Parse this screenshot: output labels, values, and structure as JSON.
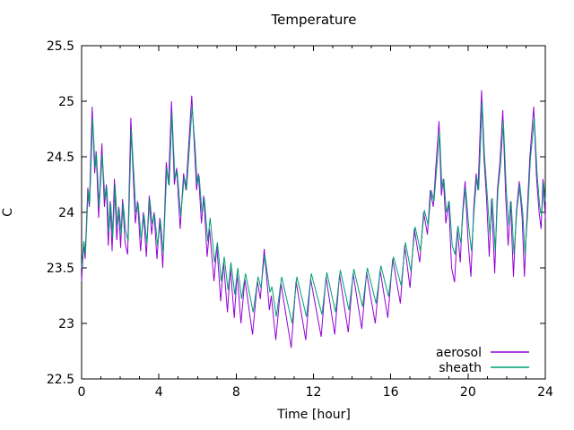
{
  "chart_data": {
    "type": "line",
    "title": "Temperature",
    "xlabel": "Time [hour]",
    "ylabel": "C",
    "xlim": [
      0,
      24
    ],
    "ylim": [
      22.5,
      25.5
    ],
    "grid": false,
    "legend_position": "inside-bottom-right",
    "x_major_ticks": [
      0,
      4,
      8,
      12,
      16,
      20,
      24
    ],
    "x_tick_labels": [
      "0",
      "4",
      "8",
      "12",
      "16",
      "20",
      "24"
    ],
    "x_minor_step": 1,
    "y_major_ticks": [
      22.5,
      23,
      23.5,
      24,
      24.5,
      25,
      25.5
    ],
    "y_tick_labels": [
      "22.5",
      "23",
      "23.5",
      "24",
      "24.5",
      "25",
      "25.5"
    ],
    "series": [
      {
        "name": "aerosol",
        "color": "#9400d3",
        "points": [
          [
            0.0,
            23.38
          ],
          [
            0.1,
            23.72
          ],
          [
            0.18,
            23.58
          ],
          [
            0.32,
            24.22
          ],
          [
            0.4,
            24.05
          ],
          [
            0.55,
            24.95
          ],
          [
            0.68,
            24.35
          ],
          [
            0.75,
            24.55
          ],
          [
            0.88,
            23.95
          ],
          [
            1.05,
            24.62
          ],
          [
            1.18,
            24.05
          ],
          [
            1.28,
            24.25
          ],
          [
            1.38,
            23.7
          ],
          [
            1.48,
            24.1
          ],
          [
            1.58,
            23.65
          ],
          [
            1.7,
            24.3
          ],
          [
            1.82,
            23.75
          ],
          [
            1.92,
            24.05
          ],
          [
            2.02,
            23.68
          ],
          [
            2.12,
            24.12
          ],
          [
            2.25,
            23.72
          ],
          [
            2.38,
            23.62
          ],
          [
            2.55,
            24.85
          ],
          [
            2.68,
            24.3
          ],
          [
            2.78,
            23.9
          ],
          [
            2.9,
            24.1
          ],
          [
            3.05,
            23.65
          ],
          [
            3.2,
            24.0
          ],
          [
            3.35,
            23.6
          ],
          [
            3.5,
            24.15
          ],
          [
            3.62,
            23.8
          ],
          [
            3.75,
            24.0
          ],
          [
            3.9,
            23.58
          ],
          [
            4.05,
            23.95
          ],
          [
            4.2,
            23.5
          ],
          [
            4.38,
            24.45
          ],
          [
            4.5,
            24.25
          ],
          [
            4.65,
            25.0
          ],
          [
            4.8,
            24.25
          ],
          [
            4.92,
            24.4
          ],
          [
            5.1,
            23.85
          ],
          [
            5.28,
            24.35
          ],
          [
            5.4,
            24.2
          ],
          [
            5.7,
            25.05
          ],
          [
            5.85,
            24.55
          ],
          [
            5.95,
            24.2
          ],
          [
            6.05,
            24.35
          ],
          [
            6.2,
            23.9
          ],
          [
            6.32,
            24.15
          ],
          [
            6.5,
            23.6
          ],
          [
            6.62,
            23.85
          ],
          [
            6.85,
            23.38
          ],
          [
            7.0,
            23.7
          ],
          [
            7.2,
            23.2
          ],
          [
            7.35,
            23.55
          ],
          [
            7.55,
            23.1
          ],
          [
            7.7,
            23.5
          ],
          [
            7.9,
            23.05
          ],
          [
            8.05,
            23.45
          ],
          [
            8.25,
            23.0
          ],
          [
            8.45,
            23.4
          ],
          [
            8.85,
            22.9
          ],
          [
            9.1,
            23.38
          ],
          [
            9.25,
            23.22
          ],
          [
            9.45,
            23.67
          ],
          [
            9.72,
            23.12
          ],
          [
            9.82,
            23.25
          ],
          [
            10.05,
            22.85
          ],
          [
            10.32,
            23.36
          ],
          [
            10.85,
            22.78
          ],
          [
            11.1,
            23.38
          ],
          [
            11.6,
            22.85
          ],
          [
            11.85,
            23.4
          ],
          [
            12.4,
            22.88
          ],
          [
            12.65,
            23.42
          ],
          [
            13.1,
            22.9
          ],
          [
            13.35,
            23.44
          ],
          [
            13.8,
            22.92
          ],
          [
            14.05,
            23.45
          ],
          [
            14.5,
            22.95
          ],
          [
            14.75,
            23.46
          ],
          [
            15.2,
            23.0
          ],
          [
            15.45,
            23.48
          ],
          [
            15.85,
            23.05
          ],
          [
            16.1,
            23.58
          ],
          [
            16.5,
            23.18
          ],
          [
            16.72,
            23.7
          ],
          [
            17.0,
            23.32
          ],
          [
            17.22,
            23.85
          ],
          [
            17.5,
            23.55
          ],
          [
            17.7,
            24.0
          ],
          [
            17.9,
            23.8
          ],
          [
            18.05,
            24.2
          ],
          [
            18.2,
            24.05
          ],
          [
            18.35,
            24.45
          ],
          [
            18.5,
            24.82
          ],
          [
            18.62,
            24.15
          ],
          [
            18.72,
            24.3
          ],
          [
            18.85,
            23.9
          ],
          [
            19.0,
            24.1
          ],
          [
            19.15,
            23.5
          ],
          [
            19.3,
            23.37
          ],
          [
            19.45,
            23.85
          ],
          [
            19.6,
            23.55
          ],
          [
            19.72,
            24.0
          ],
          [
            19.85,
            24.28
          ],
          [
            20.0,
            23.75
          ],
          [
            20.15,
            23.42
          ],
          [
            20.3,
            24.05
          ],
          [
            20.42,
            24.35
          ],
          [
            20.52,
            24.2
          ],
          [
            20.7,
            25.1
          ],
          [
            20.82,
            24.5
          ],
          [
            20.95,
            24.15
          ],
          [
            21.1,
            23.6
          ],
          [
            21.22,
            24.12
          ],
          [
            21.38,
            23.45
          ],
          [
            21.52,
            24.2
          ],
          [
            21.65,
            24.45
          ],
          [
            21.8,
            24.92
          ],
          [
            21.95,
            24.15
          ],
          [
            22.08,
            23.7
          ],
          [
            22.2,
            24.1
          ],
          [
            22.35,
            23.42
          ],
          [
            22.5,
            24.0
          ],
          [
            22.65,
            24.28
          ],
          [
            22.8,
            23.95
          ],
          [
            22.92,
            23.42
          ],
          [
            23.05,
            23.95
          ],
          [
            23.2,
            24.5
          ],
          [
            23.4,
            24.95
          ],
          [
            23.55,
            24.3
          ],
          [
            23.68,
            24.0
          ],
          [
            23.78,
            23.85
          ],
          [
            23.88,
            24.3
          ],
          [
            24.0,
            23.95
          ]
        ]
      },
      {
        "name": "sheath",
        "color": "#009e73",
        "points": [
          [
            0.0,
            23.5
          ],
          [
            0.12,
            23.74
          ],
          [
            0.2,
            23.62
          ],
          [
            0.34,
            24.2
          ],
          [
            0.42,
            24.08
          ],
          [
            0.57,
            24.85
          ],
          [
            0.7,
            24.4
          ],
          [
            0.77,
            24.52
          ],
          [
            0.91,
            24.05
          ],
          [
            1.07,
            24.52
          ],
          [
            1.21,
            24.12
          ],
          [
            1.31,
            24.22
          ],
          [
            1.41,
            23.82
          ],
          [
            1.51,
            24.08
          ],
          [
            1.61,
            23.77
          ],
          [
            1.73,
            24.25
          ],
          [
            1.85,
            23.87
          ],
          [
            1.95,
            24.03
          ],
          [
            2.05,
            23.8
          ],
          [
            2.15,
            24.08
          ],
          [
            2.28,
            23.83
          ],
          [
            2.41,
            23.74
          ],
          [
            2.57,
            24.75
          ],
          [
            2.71,
            24.32
          ],
          [
            2.81,
            24.0
          ],
          [
            2.93,
            24.08
          ],
          [
            3.08,
            23.77
          ],
          [
            3.23,
            23.98
          ],
          [
            3.38,
            23.72
          ],
          [
            3.53,
            24.12
          ],
          [
            3.65,
            23.9
          ],
          [
            3.78,
            23.98
          ],
          [
            3.93,
            23.7
          ],
          [
            4.08,
            23.93
          ],
          [
            4.23,
            23.63
          ],
          [
            4.41,
            24.4
          ],
          [
            4.53,
            24.24
          ],
          [
            4.68,
            24.9
          ],
          [
            4.83,
            24.3
          ],
          [
            4.95,
            24.37
          ],
          [
            5.13,
            23.97
          ],
          [
            5.31,
            24.32
          ],
          [
            5.43,
            24.2
          ],
          [
            5.72,
            24.95
          ],
          [
            5.88,
            24.57
          ],
          [
            5.98,
            24.25
          ],
          [
            6.08,
            24.33
          ],
          [
            6.23,
            24.0
          ],
          [
            6.35,
            24.13
          ],
          [
            6.53,
            23.74
          ],
          [
            6.65,
            23.95
          ],
          [
            6.88,
            23.55
          ],
          [
            7.03,
            23.73
          ],
          [
            7.23,
            23.38
          ],
          [
            7.38,
            23.6
          ],
          [
            7.58,
            23.3
          ],
          [
            7.73,
            23.55
          ],
          [
            7.93,
            23.26
          ],
          [
            8.08,
            23.5
          ],
          [
            8.28,
            23.22
          ],
          [
            8.48,
            23.45
          ],
          [
            8.88,
            23.1
          ],
          [
            9.13,
            23.42
          ],
          [
            9.28,
            23.32
          ],
          [
            9.48,
            23.62
          ],
          [
            9.75,
            23.28
          ],
          [
            9.85,
            23.33
          ],
          [
            10.08,
            23.06
          ],
          [
            10.35,
            23.42
          ],
          [
            10.9,
            23.0
          ],
          [
            11.14,
            23.42
          ],
          [
            11.64,
            23.06
          ],
          [
            11.89,
            23.45
          ],
          [
            12.44,
            23.08
          ],
          [
            12.69,
            23.46
          ],
          [
            13.14,
            23.1
          ],
          [
            13.39,
            23.48
          ],
          [
            13.84,
            23.12
          ],
          [
            14.09,
            23.49
          ],
          [
            14.54,
            23.15
          ],
          [
            14.79,
            23.5
          ],
          [
            15.24,
            23.18
          ],
          [
            15.49,
            23.52
          ],
          [
            15.89,
            23.24
          ],
          [
            16.14,
            23.6
          ],
          [
            16.54,
            23.34
          ],
          [
            16.76,
            23.73
          ],
          [
            17.04,
            23.47
          ],
          [
            17.26,
            23.87
          ],
          [
            17.54,
            23.65
          ],
          [
            17.74,
            24.02
          ],
          [
            17.94,
            23.88
          ],
          [
            18.09,
            24.2
          ],
          [
            18.24,
            24.1
          ],
          [
            18.53,
            24.72
          ],
          [
            18.65,
            24.2
          ],
          [
            18.75,
            24.3
          ],
          [
            18.88,
            24.0
          ],
          [
            19.03,
            24.1
          ],
          [
            19.18,
            23.7
          ],
          [
            19.33,
            23.62
          ],
          [
            19.48,
            23.88
          ],
          [
            19.63,
            23.72
          ],
          [
            19.75,
            24.02
          ],
          [
            19.88,
            24.22
          ],
          [
            20.03,
            23.88
          ],
          [
            20.18,
            23.65
          ],
          [
            20.33,
            24.05
          ],
          [
            20.45,
            24.32
          ],
          [
            20.55,
            24.2
          ],
          [
            20.73,
            25.0
          ],
          [
            20.85,
            24.52
          ],
          [
            20.98,
            24.2
          ],
          [
            21.13,
            23.8
          ],
          [
            21.25,
            24.13
          ],
          [
            21.41,
            23.65
          ],
          [
            21.55,
            24.2
          ],
          [
            21.68,
            24.42
          ],
          [
            21.83,
            24.82
          ],
          [
            21.98,
            24.2
          ],
          [
            22.11,
            23.88
          ],
          [
            22.23,
            24.1
          ],
          [
            22.38,
            23.62
          ],
          [
            22.53,
            24.02
          ],
          [
            22.68,
            24.25
          ],
          [
            22.83,
            24.0
          ],
          [
            22.95,
            23.62
          ],
          [
            23.08,
            23.97
          ],
          [
            23.23,
            24.48
          ],
          [
            23.43,
            24.85
          ],
          [
            23.58,
            24.33
          ],
          [
            23.71,
            24.05
          ],
          [
            23.81,
            23.97
          ],
          [
            23.91,
            24.27
          ],
          [
            24.0,
            24.1
          ]
        ]
      }
    ]
  }
}
